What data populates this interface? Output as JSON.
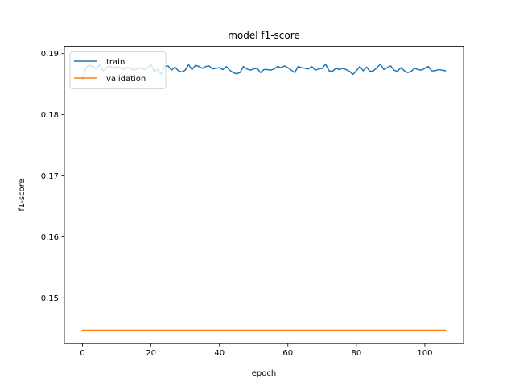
{
  "chart_data": {
    "type": "line",
    "title": "model f1-score",
    "xlabel": "epoch",
    "ylabel": "f1-score",
    "xlim": [
      -5.3,
      111.3
    ],
    "ylim": [
      0.1425,
      0.1912
    ],
    "xticks": [
      0,
      20,
      40,
      60,
      80,
      100
    ],
    "xtick_labels": [
      "0",
      "20",
      "40",
      "60",
      "80",
      "100"
    ],
    "yticks": [
      0.15,
      0.16,
      0.17,
      0.18,
      0.19
    ],
    "ytick_labels": [
      "0.15",
      "0.16",
      "0.17",
      "0.18",
      "0.19"
    ],
    "grid": false,
    "legend_position": "upper-left",
    "series": [
      {
        "name": "train",
        "color": "#1f77b4",
        "x": [
          0,
          1,
          2,
          3,
          4,
          5,
          6,
          7,
          8,
          9,
          10,
          11,
          12,
          13,
          14,
          15,
          16,
          17,
          18,
          19,
          20,
          21,
          22,
          23,
          24,
          25,
          26,
          27,
          28,
          29,
          30,
          31,
          32,
          33,
          34,
          35,
          36,
          37,
          38,
          39,
          40,
          41,
          42,
          43,
          44,
          45,
          46,
          47,
          48,
          49,
          50,
          51,
          52,
          53,
          54,
          55,
          56,
          57,
          58,
          59,
          60,
          61,
          62,
          63,
          64,
          65,
          66,
          67,
          68,
          69,
          70,
          71,
          72,
          73,
          74,
          75,
          76,
          77,
          78,
          79,
          80,
          81,
          82,
          83,
          84,
          85,
          86,
          87,
          88,
          89,
          90,
          91,
          92,
          93,
          94,
          95,
          96,
          97,
          98,
          99,
          100,
          101,
          102,
          103,
          104,
          105,
          106
        ],
        "y": [
          0.1858,
          0.1877,
          0.1881,
          0.1879,
          0.1875,
          0.1882,
          0.1872,
          0.1878,
          0.188,
          0.1876,
          0.1879,
          0.1877,
          0.1874,
          0.1878,
          0.1876,
          0.1873,
          0.1875,
          0.1876,
          0.1874,
          0.1877,
          0.1882,
          0.1871,
          0.1874,
          0.1866,
          0.1879,
          0.188,
          0.1873,
          0.1878,
          0.1872,
          0.187,
          0.1873,
          0.1882,
          0.1874,
          0.1881,
          0.1879,
          0.1876,
          0.1879,
          0.188,
          0.1875,
          0.1876,
          0.1877,
          0.1874,
          0.1879,
          0.1873,
          0.1869,
          0.1867,
          0.1869,
          0.1879,
          0.1875,
          0.1873,
          0.1875,
          0.1876,
          0.1869,
          0.1874,
          0.1874,
          0.1873,
          0.1875,
          0.1879,
          0.1877,
          0.188,
          0.1877,
          0.1873,
          0.1869,
          0.1879,
          0.1877,
          0.1876,
          0.1875,
          0.1879,
          0.1873,
          0.1875,
          0.1876,
          0.1883,
          0.1872,
          0.1871,
          0.1876,
          0.1874,
          0.1876,
          0.1874,
          0.1871,
          0.1866,
          0.1872,
          0.1879,
          0.1872,
          0.1878,
          0.1871,
          0.1872,
          0.1877,
          0.1883,
          0.1874,
          0.1877,
          0.188,
          0.1873,
          0.1871,
          0.1877,
          0.1872,
          0.1869,
          0.1871,
          0.1876,
          0.1874,
          0.1873,
          0.1876,
          0.1879,
          0.1872,
          0.1872,
          0.1874,
          0.1873,
          0.1872
        ]
      },
      {
        "name": "validation",
        "color": "#ff7f0e",
        "x": [
          0,
          106
        ],
        "y": [
          0.1447,
          0.1447
        ]
      }
    ]
  }
}
